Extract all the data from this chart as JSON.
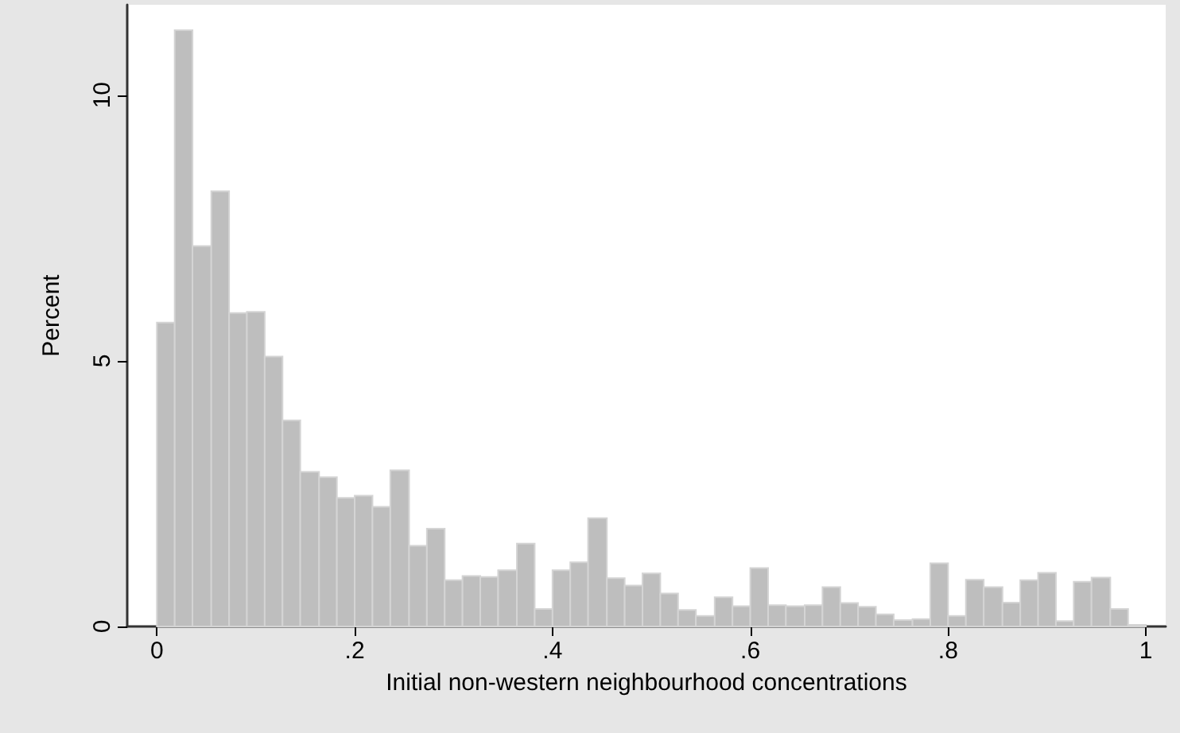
{
  "chart_data": {
    "type": "histogram",
    "xlabel": "Initial non-western neighbourhood concentrations",
    "ylabel": "Percent",
    "bins": [
      0,
      0.018,
      0.036,
      0.055,
      0.073,
      0.091,
      0.109,
      0.127,
      0.145,
      0.164,
      0.182,
      0.2,
      0.218,
      0.236,
      0.255,
      0.273,
      0.291,
      0.309,
      0.327,
      0.345,
      0.364,
      0.382,
      0.4,
      0.418,
      0.436,
      0.455,
      0.473,
      0.491,
      0.509,
      0.527,
      0.545,
      0.564,
      0.582,
      0.6,
      0.618,
      0.636,
      0.655,
      0.673,
      0.691,
      0.709,
      0.727,
      0.745,
      0.764,
      0.782,
      0.8,
      0.818,
      0.836,
      0.855,
      0.873,
      0.891,
      0.909,
      0.927,
      0.945,
      0.964,
      0.982,
      1
    ],
    "values": [
      5.72,
      11.22,
      7.16,
      8.19,
      5.9,
      5.92,
      5.08,
      3.88,
      2.91,
      2.81,
      2.42,
      2.46,
      2.25,
      2.94,
      1.52,
      1.84,
      0.87,
      0.95,
      0.93,
      1.06,
      1.56,
      0.33,
      1.06,
      1.21,
      2.04,
      0.91,
      0.77,
      1.0,
      0.62,
      0.31,
      0.2,
      0.55,
      0.38,
      1.1,
      0.4,
      0.38,
      0.4,
      0.74,
      0.44,
      0.37,
      0.23,
      0.12,
      0.14,
      1.19,
      0.2,
      0.88,
      0.74,
      0.45,
      0.87,
      1.01,
      0.1,
      0.84,
      0.92,
      0.33,
      0.03
    ],
    "color": "#bebebe",
    "xlim": [
      -0.03,
      1.02
    ],
    "xticks": [
      0,
      {
        "value": 0.2,
        "label": ".2"
      },
      {
        "value": 0.4,
        "label": ".4"
      },
      {
        "value": 0.6,
        "label": ".6"
      },
      {
        "value": 0.8,
        "label": ".8"
      },
      1
    ],
    "ylim": [
      0,
      11.7
    ],
    "yticks": [
      0,
      5,
      10
    ]
  }
}
